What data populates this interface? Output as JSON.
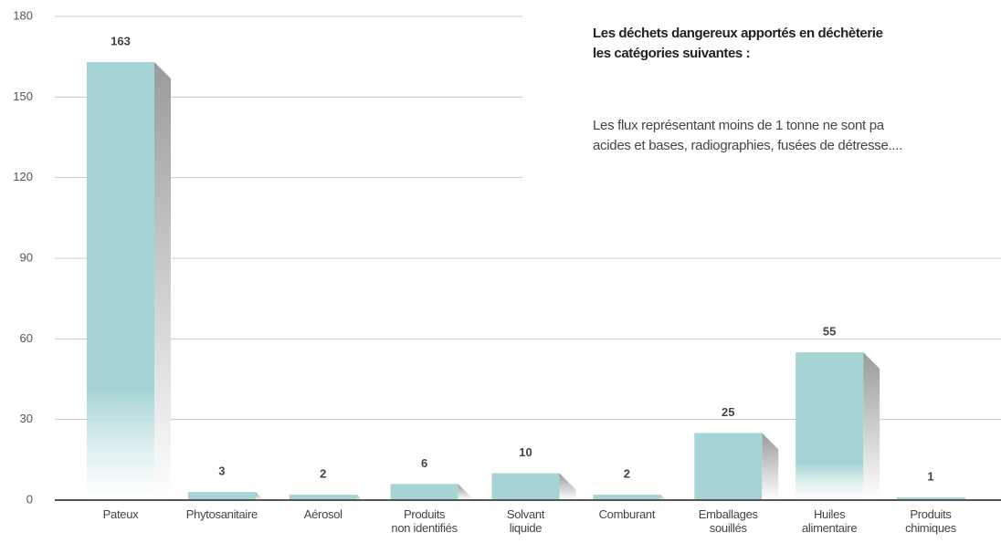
{
  "chart_data": {
    "type": "bar",
    "categories": [
      "Pateux",
      "Phytosanitaire",
      "Aérosol",
      "Produits\nnon identifiés",
      "Solvant\nliquide",
      "Comburant",
      "Emballages\nsouillés",
      "Huiles\nalimentaire",
      "Produits\nchimiques"
    ],
    "values": [
      163,
      3,
      2,
      6,
      10,
      2,
      25,
      55,
      1
    ],
    "color": "#a6d4d6",
    "ylim": [
      0,
      180
    ],
    "yticks": [
      0,
      30,
      60,
      90,
      120,
      150,
      180
    ],
    "grid": true,
    "annotations": [
      "Les déchets dangereux apportés en déchèterie\nles catégories suivantes :",
      "Les flux représentant moins de 1 tonne ne sont pa\nacides et bases, radiographies, fusées de détresse...."
    ]
  }
}
